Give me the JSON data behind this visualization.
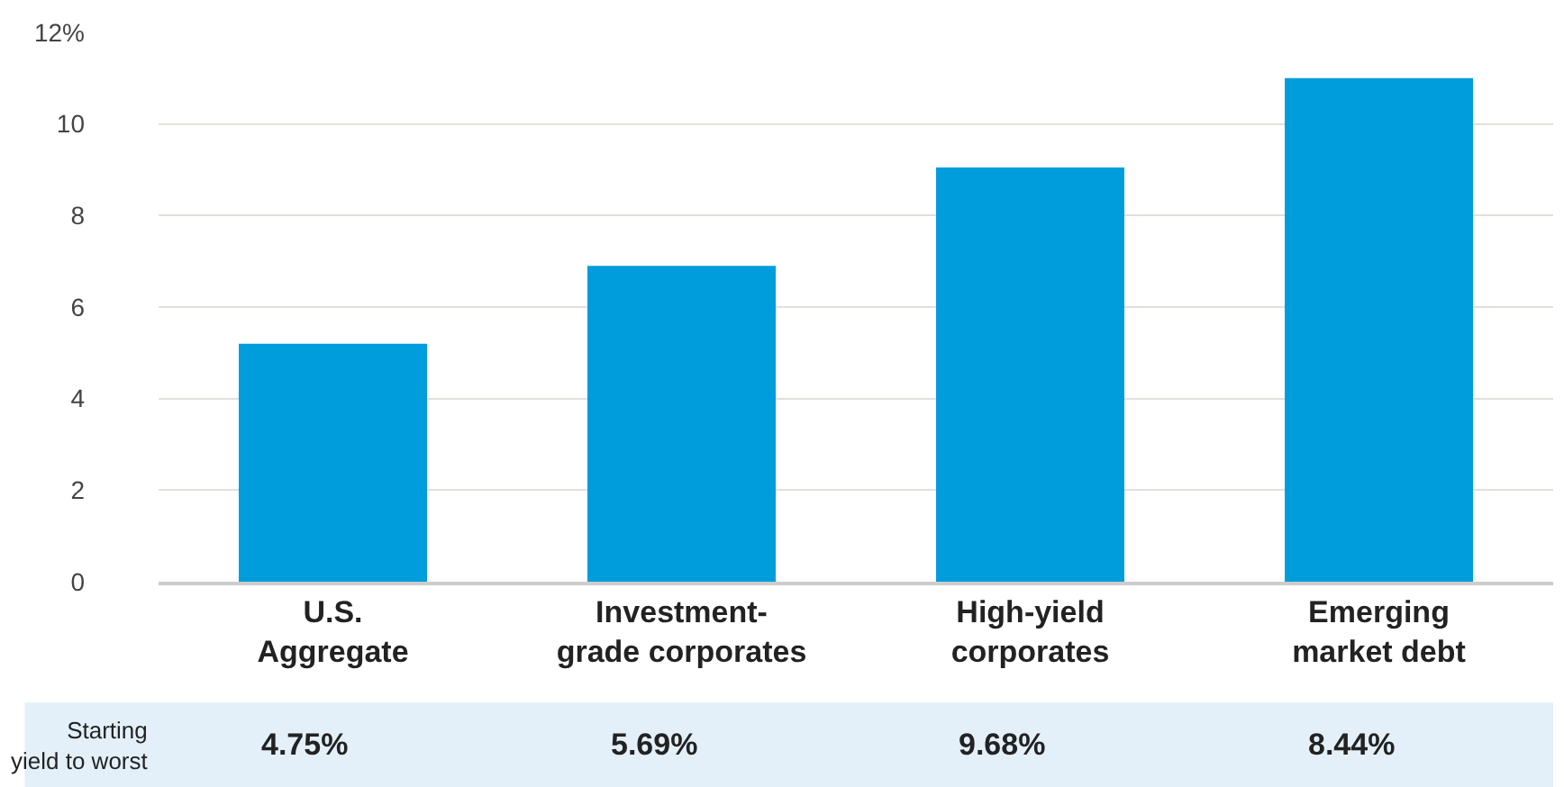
{
  "chart_data": {
    "type": "bar",
    "categories": [
      "U.S.\nAggregate",
      "Investment-\ngrade corporates",
      "High-yield\ncorporates",
      "Emerging\nmarket debt"
    ],
    "values": [
      5.2,
      6.9,
      9.05,
      11.0
    ],
    "color": "#009ddc",
    "ylim": [
      0,
      12
    ],
    "yticks": [
      0,
      2,
      4,
      6,
      8,
      10,
      {
        "value": 12,
        "label": "12%"
      }
    ],
    "grid": "y",
    "annotations": [
      "Starting\nyield to worst",
      "4.75%",
      "5.69%",
      "9.68%",
      "8.44%"
    ]
  }
}
